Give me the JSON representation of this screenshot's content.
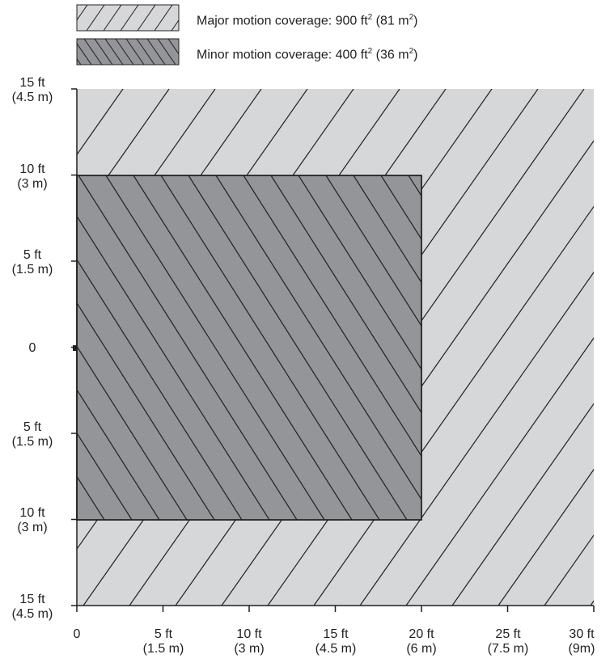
{
  "legend": {
    "major": {
      "prefix": "Major motion coverage: 900 ft",
      "sup1": "2",
      "mid": " (81 m",
      "sup2": "2",
      "suffix": ")",
      "fill": "#d6d7d9",
      "hatch": "forward-slash"
    },
    "minor": {
      "prefix": "Minor motion coverage: 400 ft",
      "sup1": "2",
      "mid": " (36 m",
      "sup2": "2",
      "suffix": ")",
      "fill": "#939598",
      "hatch": "back-slash"
    }
  },
  "y_axis": {
    "ticks": [
      {
        "value": 15,
        "line1": "15 ft",
        "line2": "(4.5 m)"
      },
      {
        "value": 10,
        "line1": "10 ft",
        "line2": "(3 m)"
      },
      {
        "value": 5,
        "line1": "5 ft",
        "line2": "(1.5 m)"
      },
      {
        "value": 0,
        "line1": "0",
        "line2": ""
      },
      {
        "value": -5,
        "line1": "5 ft",
        "line2": "(1.5 m)"
      },
      {
        "value": -10,
        "line1": "10 ft",
        "line2": "(3 m)"
      },
      {
        "value": -15,
        "line1": "15 ft",
        "line2": "(4.5 m)"
      }
    ]
  },
  "x_axis": {
    "ticks": [
      {
        "value": 0,
        "line1": "0",
        "line2": ""
      },
      {
        "value": 5,
        "line1": "5 ft",
        "line2": "(1.5 m)"
      },
      {
        "value": 10,
        "line1": "10 ft",
        "line2": "(3 m)"
      },
      {
        "value": 15,
        "line1": "15 ft",
        "line2": "(4.5 m)"
      },
      {
        "value": 20,
        "line1": "20 ft",
        "line2": "(6 m)"
      },
      {
        "value": 25,
        "line1": "25 ft",
        "line2": "(7.5 m)"
      },
      {
        "value": 30,
        "line1": "30 ft",
        "line2": "(9m)"
      }
    ]
  },
  "coverage": {
    "major": {
      "x": [
        0,
        30
      ],
      "y": [
        -15,
        15
      ]
    },
    "minor": {
      "x": [
        0,
        20
      ],
      "y": [
        -10,
        10
      ]
    }
  }
}
